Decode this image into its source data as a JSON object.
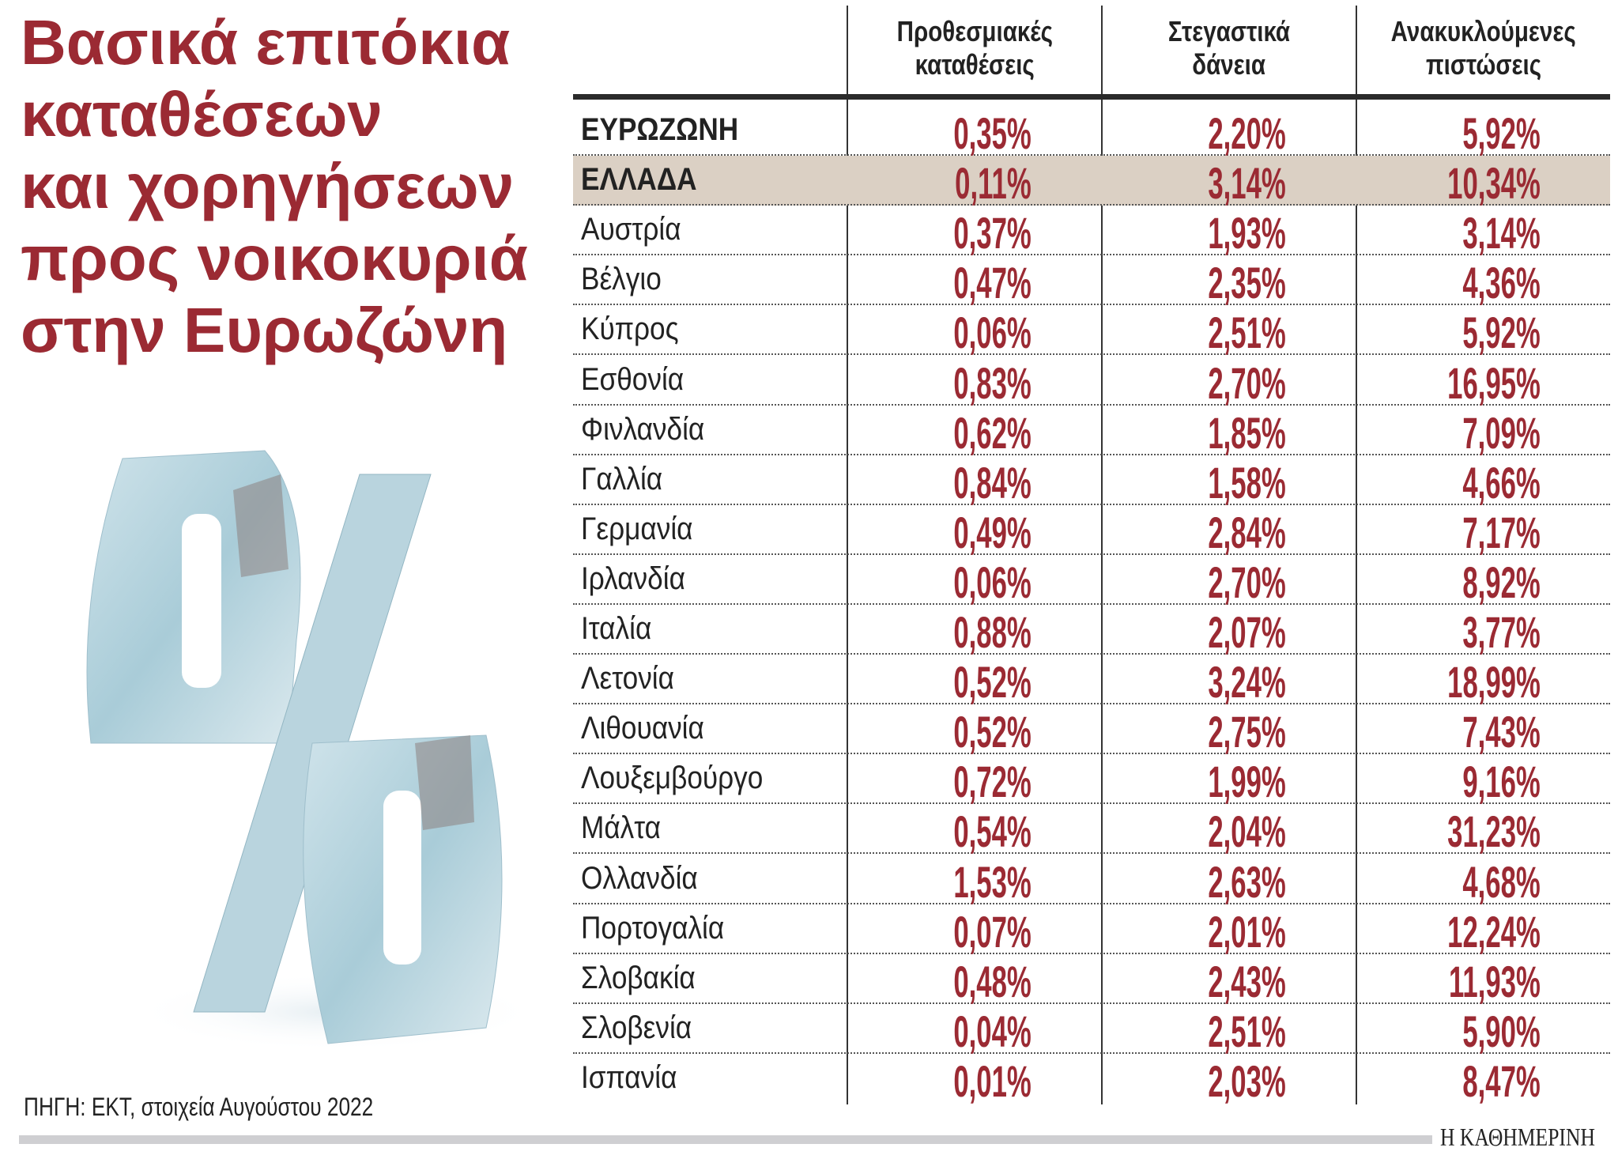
{
  "title_lines": [
    "Βασικά επιτόκια",
    "καταθέσεων",
    "και χορηγήσεων",
    "προς νοικοκυριά",
    "στην Ευρωζώνη"
  ],
  "columns": [
    "Προθεσμιακές καταθέσεις",
    "Στεγαστικά δάνεια",
    "Ανακυκλούμενες πιστώσεις"
  ],
  "column_lines": [
    [
      "Προθεσμιακές",
      "καταθέσεις"
    ],
    [
      "Στεγαστικά",
      "δάνεια"
    ],
    [
      "Ανακυκλούμενες",
      "πιστώσεις"
    ]
  ],
  "rows": [
    {
      "name": "ΕΥΡΩΖΩΝΗ",
      "values": [
        "0,35%",
        "2,20%",
        "5,92%"
      ],
      "bold": true
    },
    {
      "name": "ΕΛΛΑΔΑ",
      "values": [
        "0,11%",
        "3,14%",
        "10,34%"
      ],
      "bold": true,
      "highlight": true
    },
    {
      "name": "Αυστρία",
      "values": [
        "0,37%",
        "1,93%",
        "3,14%"
      ]
    },
    {
      "name": "Βέλγιο",
      "values": [
        "0,47%",
        "2,35%",
        "4,36%"
      ]
    },
    {
      "name": "Κύπρος",
      "values": [
        "0,06%",
        "2,51%",
        "5,92%"
      ]
    },
    {
      "name": "Εσθονία",
      "values": [
        "0,83%",
        "2,70%",
        "16,95%"
      ]
    },
    {
      "name": "Φινλανδία",
      "values": [
        "0,62%",
        "1,85%",
        "7,09%"
      ]
    },
    {
      "name": "Γαλλία",
      "values": [
        "0,84%",
        "1,58%",
        "4,66%"
      ]
    },
    {
      "name": "Γερμανία",
      "values": [
        "0,49%",
        "2,84%",
        "7,17%"
      ]
    },
    {
      "name": "Ιρλανδία",
      "values": [
        "0,06%",
        "2,70%",
        "8,92%"
      ]
    },
    {
      "name": "Ιταλία",
      "values": [
        "0,88%",
        "2,07%",
        "3,77%"
      ]
    },
    {
      "name": "Λετονία",
      "values": [
        "0,52%",
        "3,24%",
        "18,99%"
      ]
    },
    {
      "name": "Λιθουανία",
      "values": [
        "0,52%",
        "2,75%",
        "7,43%"
      ]
    },
    {
      "name": "Λουξεμβούργο",
      "values": [
        "0,72%",
        "1,99%",
        "9,16%"
      ]
    },
    {
      "name": "Μάλτα",
      "values": [
        "0,54%",
        "2,04%",
        "31,23%"
      ]
    },
    {
      "name": "Ολλανδία",
      "values": [
        "1,53%",
        "2,63%",
        "4,68%"
      ]
    },
    {
      "name": "Πορτογαλία",
      "values": [
        "0,07%",
        "2,01%",
        "12,24%"
      ]
    },
    {
      "name": "Σλοβακία",
      "values": [
        "0,48%",
        "2,43%",
        "11,93%"
      ]
    },
    {
      "name": "Σλοβενία",
      "values": [
        "0,04%",
        "2,51%",
        "5,90%"
      ]
    },
    {
      "name": "Ισπανία",
      "values": [
        "0,01%",
        "2,03%",
        "8,47%"
      ]
    }
  ],
  "source": "ΠΗΓΗ: ΕΚΤ, στοιχεία Αυγούστου 2022",
  "logo": "Η ΚΑΘΗΜΕΡΙΝΗ",
  "illustration": "percent-sign-made-of-euro-banknotes",
  "colors": {
    "title": "#9b2a33",
    "values": "#9b2a33",
    "highlight": "#dbd0c4"
  }
}
